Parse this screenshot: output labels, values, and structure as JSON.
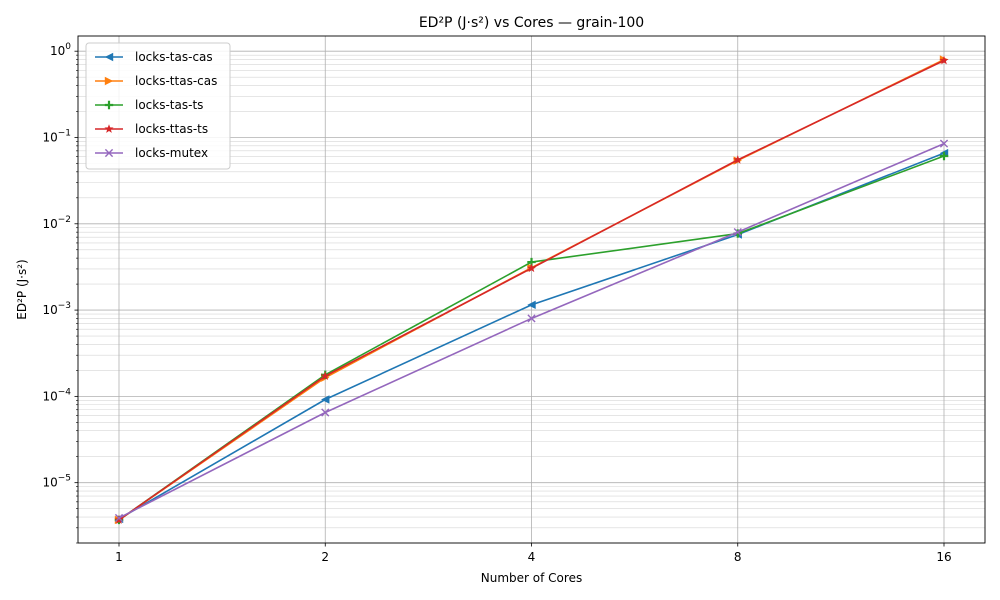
{
  "chart_data": {
    "type": "line",
    "title": "ED²P (J·s²) vs Cores — grain-100",
    "xlabel": "Number of Cores",
    "ylabel": "ED²P (J·s²)",
    "x_scale": "log2",
    "y_scale": "log10",
    "x": [
      1,
      2,
      4,
      8,
      16
    ],
    "x_tick_labels": [
      "1",
      "2",
      "4",
      "8",
      "16"
    ],
    "ylim": [
      2e-06,
      1.5
    ],
    "y_ticks": [
      {
        "value": 1e-05,
        "base": "10",
        "exp": "−5"
      },
      {
        "value": 0.0001,
        "base": "10",
        "exp": "−4"
      },
      {
        "value": 0.001,
        "base": "10",
        "exp": "−3"
      },
      {
        "value": 0.01,
        "base": "10",
        "exp": "−2"
      },
      {
        "value": 0.1,
        "base": "10",
        "exp": "−1"
      },
      {
        "value": 1,
        "base": "10",
        "exp": "0"
      }
    ],
    "grid": true,
    "legend_position": "top-left",
    "series": [
      {
        "name": "locks-tas-cas",
        "color": "#1f77b4",
        "marker": "triangle-left",
        "values": [
          3.8e-06,
          9.2e-05,
          0.00115,
          0.0075,
          0.066
        ]
      },
      {
        "name": "locks-ttas-cas",
        "color": "#ff7f0e",
        "marker": "triangle-right",
        "values": [
          3.7e-06,
          0.000165,
          0.0031,
          0.054,
          0.8
        ]
      },
      {
        "name": "locks-tas-ts",
        "color": "#2ca02c",
        "marker": "plus",
        "values": [
          3.7e-06,
          0.000178,
          0.0036,
          0.0077,
          0.061
        ]
      },
      {
        "name": "locks-ttas-ts",
        "color": "#d62728",
        "marker": "star",
        "values": [
          3.7e-06,
          0.000172,
          0.00305,
          0.055,
          0.78
        ]
      },
      {
        "name": "locks-mutex",
        "color": "#9467bd",
        "marker": "x",
        "values": [
          3.9e-06,
          6.5e-05,
          0.0008,
          0.008,
          0.085
        ]
      }
    ]
  }
}
